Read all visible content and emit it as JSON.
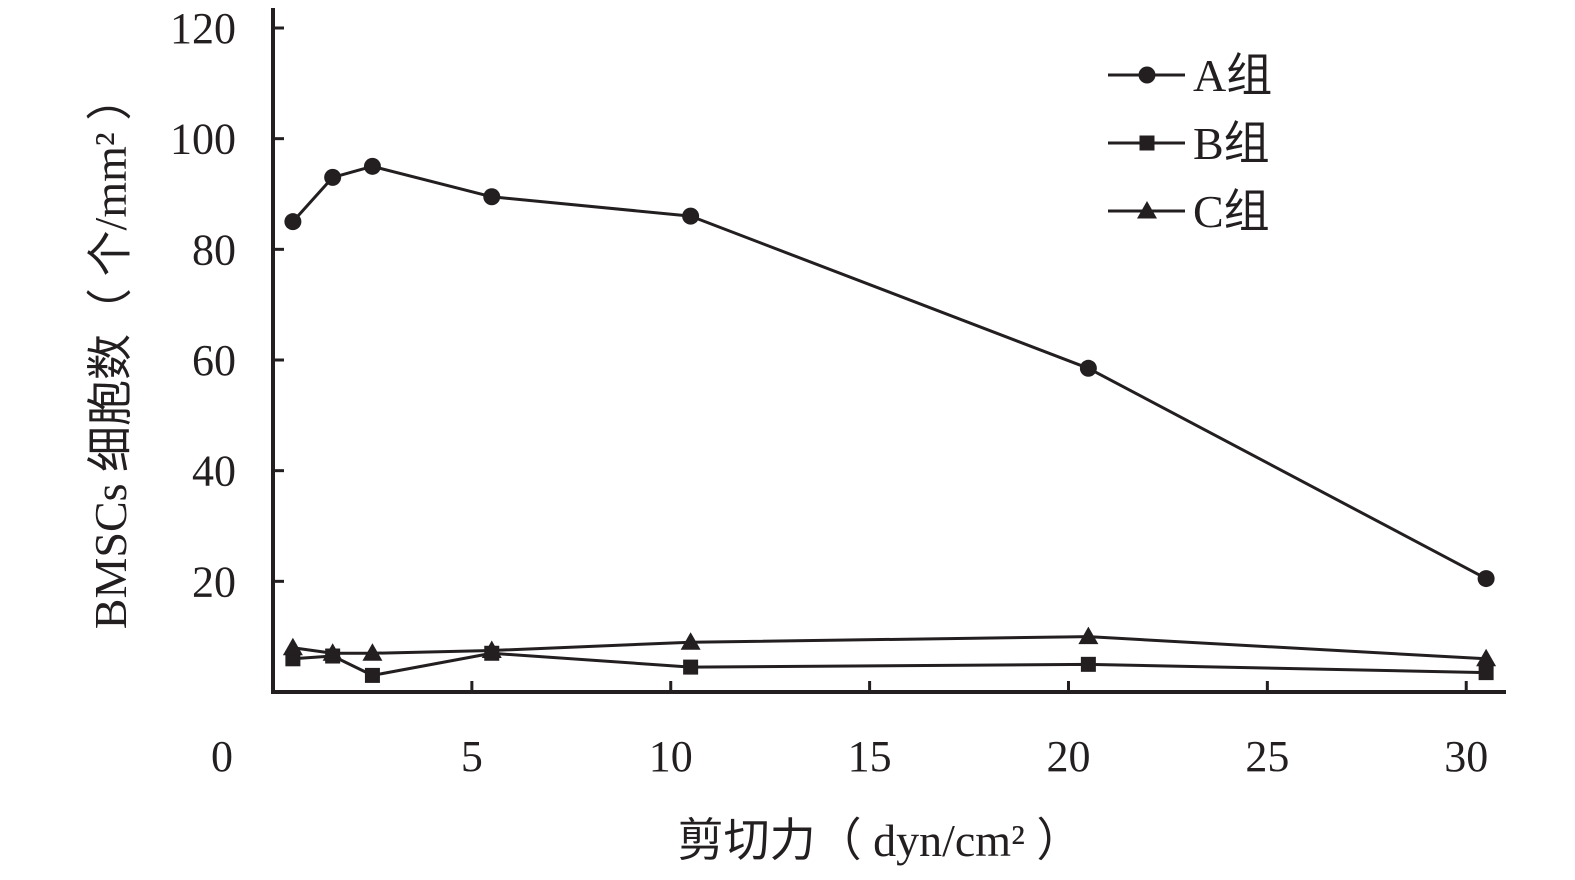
{
  "chart_data": {
    "type": "line",
    "title": "",
    "xlabel": "剪切力（ dyn/cm² ）",
    "ylabel": "BMSCs 细胞数（ 个/mm² ）",
    "xlim": [
      0,
      31
    ],
    "ylim": [
      0,
      120
    ],
    "x_ticks": [
      0,
      5,
      10,
      15,
      20,
      25,
      30
    ],
    "y_ticks": [
      20,
      40,
      60,
      80,
      100,
      120
    ],
    "x_tick_labels": [
      "0",
      "5",
      "10",
      "15",
      "20",
      "25",
      "30"
    ],
    "y_tick_labels": [
      "20",
      "40",
      "60",
      "80",
      "100",
      "120"
    ],
    "grid": false,
    "legend_position": "top-right",
    "x": [
      0.5,
      1.5,
      2.5,
      5.5,
      10.5,
      20.5,
      30.5
    ],
    "series": [
      {
        "name": "A组",
        "marker": "circle",
        "values": [
          85,
          93,
          95,
          89.5,
          86,
          58.5,
          20.5
        ]
      },
      {
        "name": "B组",
        "marker": "square",
        "values": [
          6,
          6.5,
          3,
          7,
          4.5,
          5,
          3.5
        ]
      },
      {
        "name": "C组",
        "marker": "triangle",
        "values": [
          8,
          7,
          7,
          7.5,
          9,
          10,
          6
        ]
      }
    ],
    "colors": {
      "line": "#231f20",
      "text": "#231f20"
    }
  }
}
